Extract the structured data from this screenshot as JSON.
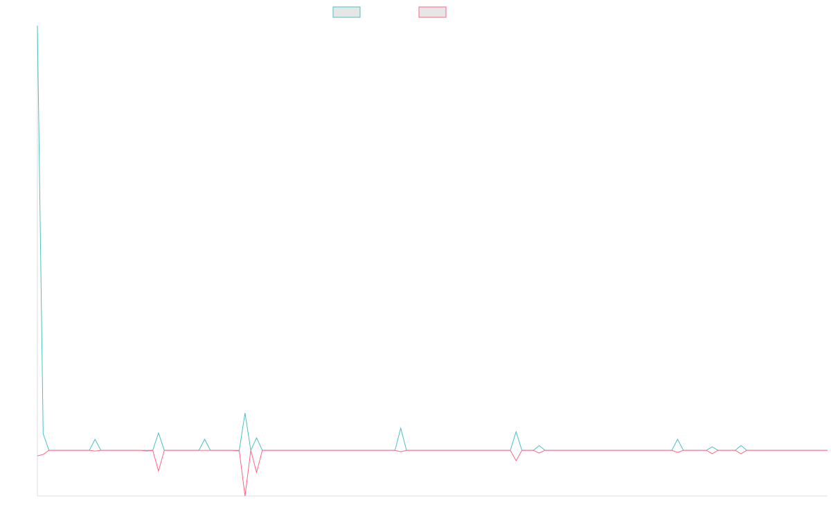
{
  "chart_data": {
    "type": "line",
    "title": "",
    "xlabel": "",
    "ylabel": "",
    "legend": {
      "placement": "top-center"
    },
    "grid": false,
    "x": [
      0,
      1,
      2,
      3,
      4,
      5,
      6,
      7,
      8,
      9,
      10,
      11,
      12,
      13,
      14,
      15,
      16,
      17,
      18,
      19,
      20,
      21,
      22,
      23,
      24,
      25,
      26,
      27,
      28,
      29,
      30,
      31,
      32,
      33,
      34,
      35,
      36,
      37,
      38,
      39,
      40,
      41,
      42,
      43,
      44,
      45,
      46,
      47,
      48,
      49,
      50,
      51,
      52,
      53,
      54,
      55,
      56,
      57,
      58,
      59,
      60,
      61,
      62,
      63,
      64,
      65,
      66,
      67,
      68,
      69,
      70,
      71,
      72,
      73,
      74,
      75,
      76,
      77,
      78,
      79,
      80,
      81,
      82,
      83,
      84,
      85,
      86,
      87,
      88,
      89,
      90,
      91,
      92,
      93,
      94,
      95,
      96,
      97,
      98,
      99,
      100,
      101,
      102,
      103,
      104,
      105,
      106,
      107,
      108,
      109,
      110,
      111,
      112,
      113,
      114,
      115,
      116,
      117,
      118,
      119,
      120,
      121,
      122,
      123,
      124,
      125,
      126,
      127,
      128,
      129,
      130,
      131,
      132,
      133,
      134,
      135,
      136,
      137
    ],
    "ylim": [
      -66,
      614
    ],
    "series": [
      {
        "name": "",
        "color": "#4bc0c0",
        "fill": "#e6e6e6",
        "values": [
          614,
          24,
          0,
          0,
          0,
          0,
          0,
          0,
          0,
          0,
          16,
          0,
          0,
          0,
          0,
          0,
          0,
          0,
          0,
          0,
          0,
          25,
          0,
          0,
          0,
          0,
          0,
          0,
          0,
          16,
          0,
          0,
          0,
          0,
          0,
          0,
          54,
          0,
          18,
          0,
          0,
          0,
          0,
          0,
          0,
          0,
          0,
          0,
          0,
          0,
          0,
          0,
          0,
          0,
          0,
          0,
          0,
          0,
          0,
          0,
          0,
          0,
          0,
          32,
          0,
          0,
          0,
          0,
          0,
          0,
          0,
          0,
          0,
          0,
          0,
          0,
          0,
          0,
          0,
          0,
          0,
          0,
          0,
          27,
          0,
          0,
          0,
          7,
          0,
          0,
          0,
          0,
          0,
          0,
          0,
          0,
          0,
          0,
          0,
          0,
          0,
          0,
          0,
          0,
          0,
          0,
          0,
          0,
          0,
          0,
          0,
          16,
          0,
          0,
          0,
          0,
          0,
          5,
          0,
          0,
          0,
          0,
          7,
          0,
          0,
          0,
          0,
          0,
          0,
          0,
          0,
          0,
          0,
          0,
          0,
          0,
          0,
          0
        ]
      },
      {
        "name": "",
        "color": "#ff6384",
        "fill": "#e6e6e6",
        "values": [
          -8,
          -6,
          0,
          0,
          0,
          0,
          0,
          0,
          0,
          0,
          -1,
          0,
          0,
          0,
          0,
          0,
          0,
          0,
          0,
          -1,
          0,
          -30,
          0,
          0,
          0,
          0,
          0,
          0,
          0,
          0,
          0,
          0,
          0,
          0,
          0,
          -1,
          -66,
          0,
          -32,
          0,
          0,
          0,
          0,
          0,
          0,
          0,
          0,
          0,
          0,
          0,
          0,
          0,
          0,
          0,
          0,
          0,
          0,
          0,
          0,
          0,
          0,
          0,
          0,
          -2,
          0,
          0,
          0,
          0,
          0,
          0,
          0,
          0,
          0,
          0,
          0,
          0,
          0,
          0,
          0,
          0,
          0,
          0,
          0,
          -15,
          0,
          0,
          0,
          -4,
          0,
          0,
          0,
          0,
          0,
          0,
          0,
          0,
          0,
          0,
          0,
          0,
          0,
          0,
          0,
          0,
          0,
          0,
          0,
          0,
          0,
          0,
          0,
          -3,
          0,
          0,
          0,
          0,
          0,
          -5,
          0,
          0,
          0,
          0,
          -5,
          0,
          0,
          0,
          0,
          0,
          0,
          0,
          0,
          0,
          0,
          0,
          0,
          0,
          0,
          0
        ]
      }
    ]
  }
}
